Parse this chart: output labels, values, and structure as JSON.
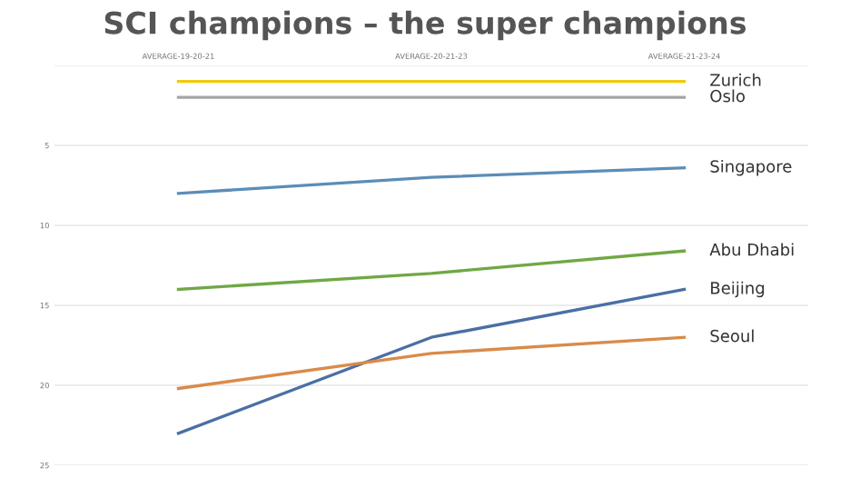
{
  "chart_data": {
    "type": "line",
    "title": "SCI champions – the super champions",
    "categories": [
      "AVERAGE-19-20-21",
      "AVERAGE-20-21-23",
      "AVERAGE-21-23-24"
    ],
    "series": [
      {
        "name": "Zurich",
        "color": "#f2c80f",
        "values": [
          1,
          1,
          1
        ]
      },
      {
        "name": "Oslo",
        "color": "#a5a5a5",
        "values": [
          2,
          2,
          2
        ]
      },
      {
        "name": "Singapore",
        "color": "#5b8db8",
        "values": [
          8,
          7,
          6.4
        ]
      },
      {
        "name": "Abu Dhabi",
        "color": "#70a845",
        "values": [
          14,
          13,
          11.6
        ]
      },
      {
        "name": "Beijing",
        "color": "#4a6fa5",
        "values": [
          23,
          17,
          14
        ]
      },
      {
        "name": "Seoul",
        "color": "#d98b4a",
        "values": [
          20.2,
          18,
          17
        ]
      }
    ],
    "ylim": [
      25,
      0
    ],
    "yticks": [
      {
        "value": 0,
        "label": null
      },
      5,
      10,
      15,
      20,
      25
    ],
    "grid": "y",
    "legend": false,
    "marker": "none",
    "line_style": "solid"
  }
}
